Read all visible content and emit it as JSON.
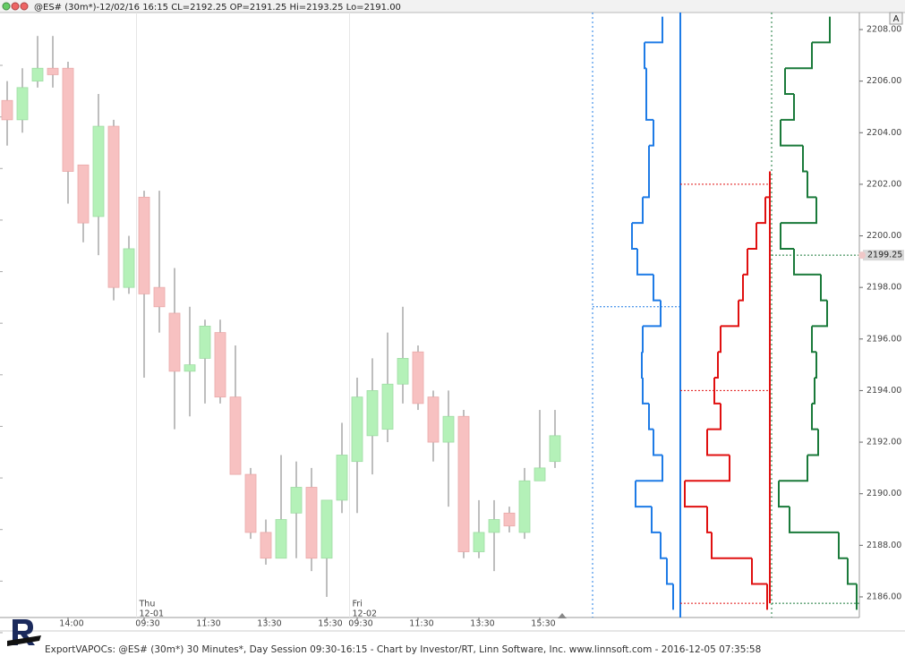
{
  "toolbar": {
    "button": "A"
  },
  "chart_data": {
    "type": "candlestick",
    "title": "@ES# (30m*)-12/02/16 16:15 CL=2192.25 OP=2191.25 Hi=2193.25 Lo=2191.00",
    "footer": "ExportVAPOCs: @ES# (30m*) 30 Minutes*, Day Session 09:30-16:15 - Chart by Investor/RT, Linn Software, Inc. www.linnsoft.com - 2016-12-05 07:35:58",
    "categories": [
      null,
      null,
      null,
      null,
      "14:00",
      null,
      null,
      null,
      null,
      "09:30",
      null,
      null,
      null,
      "11:30",
      null,
      null,
      null,
      "13:30",
      null,
      null,
      null,
      "15:30",
      null,
      "09:30",
      null,
      null,
      null,
      "11:30",
      null,
      null,
      null,
      "13:30",
      null,
      null,
      null,
      "15:30",
      null
    ],
    "open": [
      2205.25,
      2204.5,
      2206.0,
      2206.5,
      2206.5,
      2202.75,
      2200.75,
      2204.25,
      2198.0,
      2201.5,
      2198.0,
      2197.0,
      2194.75,
      2195.25,
      2196.25,
      2193.75,
      2190.75,
      2188.5,
      2187.5,
      2189.25,
      2190.25,
      2187.5,
      2189.75,
      2191.25,
      2192.25,
      2192.5,
      2194.25,
      2195.5,
      2193.75,
      2192.0,
      2193.0,
      2187.75,
      2188.5,
      2189.25,
      2188.5,
      2190.5,
      2191.25
    ],
    "high": [
      2206.0,
      2206.5,
      2207.75,
      2207.75,
      2206.75,
      2202.75,
      2205.5,
      2204.5,
      2200.0,
      2201.75,
      2201.75,
      2198.75,
      2197.25,
      2196.75,
      2196.75,
      2195.75,
      2191.0,
      2189.0,
      2191.5,
      2191.25,
      2191.0,
      2189.75,
      2192.75,
      2194.5,
      2195.25,
      2196.25,
      2197.25,
      2195.75,
      2194.0,
      2194.0,
      2193.25,
      2189.75,
      2189.75,
      2189.5,
      2191.0,
      2193.25,
      2193.25
    ],
    "low": [
      2203.5,
      2204.0,
      2205.75,
      2205.75,
      2201.25,
      2199.75,
      2199.25,
      2197.5,
      2197.75,
      2194.5,
      2196.25,
      2192.5,
      2193.0,
      2193.5,
      2193.5,
      2190.75,
      2188.25,
      2187.25,
      2187.5,
      2187.5,
      2187.0,
      2186.0,
      2189.25,
      2189.25,
      2190.75,
      2192.0,
      2193.5,
      2193.25,
      2191.25,
      2189.5,
      2187.5,
      2187.5,
      2187.0,
      2188.5,
      2188.25,
      2190.5,
      2191.0
    ],
    "close": [
      2204.5,
      2205.75,
      2206.5,
      2206.25,
      2202.5,
      2200.5,
      2204.25,
      2198.0,
      2199.5,
      2197.75,
      2197.25,
      2194.75,
      2195.0,
      2196.5,
      2193.75,
      2190.75,
      2188.5,
      2187.5,
      2189.0,
      2190.25,
      2187.5,
      2189.75,
      2191.5,
      2193.75,
      2194.0,
      2194.25,
      2195.25,
      2193.5,
      2192.0,
      2193.0,
      2187.75,
      2188.5,
      2189.0,
      2188.75,
      2190.5,
      2191.0,
      2192.25
    ],
    "colors": {
      "up": "#b4f1b8",
      "down": "#f7c1c1",
      "wick": "#9a9a9a"
    },
    "ylim": [
      2185.2,
      2208.66
    ],
    "yticks": [
      {
        "value": 2186,
        "label": "2186.00"
      },
      {
        "value": 2188,
        "label": "2188.00"
      },
      {
        "value": 2190,
        "label": "2190.00"
      },
      {
        "value": 2192,
        "label": "2192.00"
      },
      {
        "value": 2194,
        "label": "2194.00"
      },
      {
        "value": 2196,
        "label": "2196.00"
      },
      {
        "value": 2198,
        "label": "2198.00"
      },
      {
        "value": 2200,
        "label": "2200.00"
      },
      {
        "value": 2202,
        "label": "2202.00"
      },
      {
        "value": 2204,
        "label": "2204.00"
      },
      {
        "value": 2206,
        "label": "2206.00"
      },
      {
        "value": 2208,
        "label": "2208.00"
      }
    ],
    "day_labels": [
      {
        "name": "Thu",
        "date": "12-01",
        "start": 9
      },
      {
        "name": "Fri",
        "date": "12-02",
        "start": 23
      }
    ],
    "price_marker": {
      "value": 2199.25,
      "label": "2199.25"
    },
    "profiles": [
      {
        "color": "#1e7be6",
        "prices": [
          2208,
          2207,
          2206,
          2205,
          2204,
          2203,
          2202,
          2201,
          2200,
          2199,
          2198,
          2197,
          2196,
          2195,
          2194,
          2193,
          2192,
          2191,
          2190,
          2189,
          2188,
          2187,
          2186
        ],
        "values": [
          20,
          40,
          38,
          38,
          30,
          35,
          35,
          42,
          54,
          48,
          30,
          22,
          42,
          43,
          42,
          35,
          30,
          20,
          50,
          32,
          22,
          15,
          8
        ],
        "levels": [
          2197.25
        ]
      },
      {
        "color": "#e01010",
        "prices": [
          2202,
          2201,
          2200,
          2199,
          2198,
          2197,
          2196,
          2195,
          2194,
          2193,
          2192,
          2191,
          2190,
          2189,
          2188,
          2187,
          2186
        ],
        "values": [
          100,
          95,
          85,
          75,
          70,
          65,
          45,
          42,
          38,
          45,
          30,
          55,
          5,
          30,
          35,
          80,
          97
        ],
        "levels": [
          2202,
          2194,
          2185.75
        ]
      },
      {
        "color": "#1a7a3a",
        "prices": [
          2208,
          2207,
          2206,
          2205,
          2204,
          2203,
          2202,
          2201,
          2200,
          2199,
          2198,
          2197,
          2196,
          2195,
          2194,
          2193,
          2192,
          2191,
          2190,
          2189,
          2188,
          2187,
          2186
        ],
        "values": [
          65,
          45,
          15,
          25,
          10,
          35,
          40,
          50,
          10,
          25,
          55,
          62,
          45,
          50,
          48,
          45,
          52,
          40,
          8,
          20,
          75,
          85,
          95
        ],
        "levels": [
          2199.25,
          2185.75
        ]
      }
    ]
  }
}
